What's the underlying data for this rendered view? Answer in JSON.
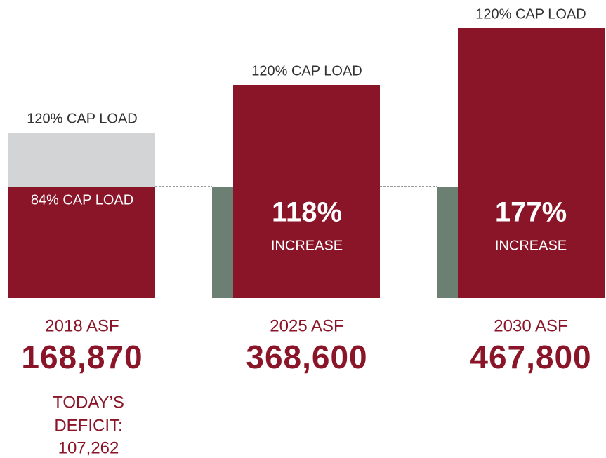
{
  "columns": [
    {
      "top_label": "120% CAP LOAD",
      "inner_label": "84% CAP LOAD",
      "year_label": "2018 ASF",
      "value": "168,870",
      "note": [
        "TODAY’S",
        "DEFICIT:",
        "107,262"
      ]
    },
    {
      "top_label": "120% CAP LOAD",
      "increase_value": "118%",
      "increase_label": "INCREASE",
      "year_label": "2025 ASF",
      "value": "368,600"
    },
    {
      "top_label": "120% CAP LOAD",
      "increase_value": "177%",
      "increase_label": "INCREASE",
      "year_label": "2030 ASF",
      "value": "467,800"
    }
  ]
}
